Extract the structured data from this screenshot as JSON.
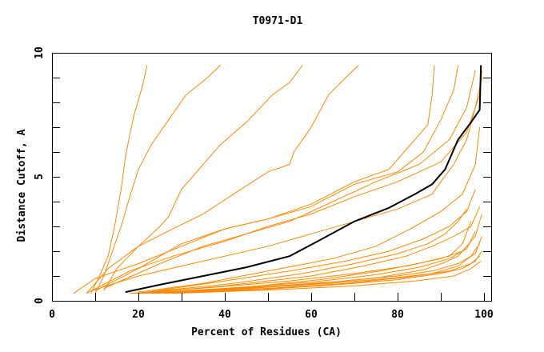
{
  "chart_data": {
    "type": "line",
    "title": "T0971-D1",
    "xlabel": "Percent of Residues (CA)",
    "ylabel": "Distance Cutoff, A",
    "xlim": [
      0,
      100
    ],
    "ylim": [
      0,
      10
    ],
    "x_ticks": [
      0,
      20,
      40,
      60,
      80,
      100
    ],
    "y_ticks": [
      0,
      5,
      10
    ],
    "grid": false,
    "colors": {
      "highlight": "#000000",
      "others": "#ff8800",
      "axis": "#000000"
    },
    "highlight_series": {
      "name": "highlighted",
      "points": [
        [
          17,
          0.35
        ],
        [
          25,
          0.65
        ],
        [
          35,
          1.0
        ],
        [
          45,
          1.35
        ],
        [
          55,
          1.8
        ],
        [
          62,
          2.45
        ],
        [
          70,
          3.2
        ],
        [
          78,
          3.75
        ],
        [
          84,
          4.3
        ],
        [
          88,
          4.7
        ],
        [
          91,
          5.3
        ],
        [
          94,
          6.5
        ],
        [
          97,
          7.2
        ],
        [
          99,
          7.7
        ],
        [
          99.3,
          9.5
        ]
      ]
    },
    "series": [
      {
        "name": "s1",
        "points": [
          [
            9,
            0.3
          ],
          [
            11,
            1.0
          ],
          [
            13,
            1.8
          ],
          [
            14.5,
            3.0
          ],
          [
            16,
            4.5
          ],
          [
            17,
            5.8
          ],
          [
            18,
            6.7
          ],
          [
            19,
            7.5
          ],
          [
            21,
            8.7
          ],
          [
            22,
            9.5
          ]
        ]
      },
      {
        "name": "s2",
        "points": [
          [
            10,
            0.3
          ],
          [
            12,
            1.0
          ],
          [
            14,
            2.0
          ],
          [
            16,
            3.0
          ],
          [
            18,
            4.2
          ],
          [
            20,
            5.3
          ],
          [
            23,
            6.3
          ],
          [
            27,
            7.3
          ],
          [
            31,
            8.3
          ],
          [
            36,
            9.0
          ],
          [
            39,
            9.5
          ]
        ]
      },
      {
        "name": "s3",
        "points": [
          [
            12,
            0.4
          ],
          [
            15,
            1.3
          ],
          [
            20,
            2.2
          ],
          [
            25,
            3.0
          ],
          [
            27,
            3.4
          ],
          [
            30,
            4.5
          ],
          [
            34,
            5.3
          ],
          [
            39,
            6.3
          ],
          [
            45,
            7.2
          ],
          [
            51,
            8.3
          ],
          [
            55,
            8.8
          ],
          [
            58,
            9.5
          ]
        ]
      },
      {
        "name": "s4",
        "points": [
          [
            8,
            0.3
          ],
          [
            13,
            1.3
          ],
          [
            20,
            2.2
          ],
          [
            28,
            2.9
          ],
          [
            35,
            3.5
          ],
          [
            42,
            4.3
          ],
          [
            50,
            5.2
          ],
          [
            55,
            5.5
          ],
          [
            56,
            6.0
          ],
          [
            60,
            7.0
          ],
          [
            64,
            8.3
          ],
          [
            68,
            9.0
          ],
          [
            71,
            9.5
          ]
        ]
      },
      {
        "name": "s5",
        "points": [
          [
            5,
            0.3
          ],
          [
            10,
            0.9
          ],
          [
            20,
            1.5
          ],
          [
            30,
            2.2
          ],
          [
            40,
            2.9
          ],
          [
            50,
            3.3
          ],
          [
            60,
            3.9
          ],
          [
            70,
            4.8
          ],
          [
            78,
            5.3
          ],
          [
            83,
            6.3
          ],
          [
            87,
            7.1
          ],
          [
            88,
            8.3
          ],
          [
            88.5,
            9.5
          ]
        ]
      },
      {
        "name": "s6",
        "points": [
          [
            10,
            0.4
          ],
          [
            20,
            1.3
          ],
          [
            30,
            2.3
          ],
          [
            40,
            2.9
          ],
          [
            50,
            3.3
          ],
          [
            60,
            3.8
          ],
          [
            70,
            4.7
          ],
          [
            80,
            5.2
          ],
          [
            86,
            6.0
          ],
          [
            90,
            7.3
          ],
          [
            93,
            8.5
          ],
          [
            94,
            9.5
          ]
        ]
      },
      {
        "name": "s7",
        "points": [
          [
            12,
            0.5
          ],
          [
            25,
            1.5
          ],
          [
            35,
            2.2
          ],
          [
            45,
            2.7
          ],
          [
            55,
            3.2
          ],
          [
            65,
            4.0
          ],
          [
            75,
            4.8
          ],
          [
            85,
            5.5
          ],
          [
            92,
            6.5
          ],
          [
            96,
            7.8
          ],
          [
            98,
            9.3
          ]
        ]
      },
      {
        "name": "s8",
        "points": [
          [
            8,
            0.3
          ],
          [
            18,
            1.2
          ],
          [
            28,
            1.8
          ],
          [
            40,
            2.4
          ],
          [
            50,
            3.0
          ],
          [
            60,
            3.5
          ],
          [
            70,
            4.2
          ],
          [
            80,
            4.8
          ],
          [
            90,
            5.6
          ],
          [
            96,
            6.8
          ],
          [
            99,
            8.3
          ],
          [
            99.5,
            9.3
          ]
        ]
      },
      {
        "name": "s9",
        "points": [
          [
            9,
            0.4
          ],
          [
            20,
            1.0
          ],
          [
            35,
            1.6
          ],
          [
            50,
            2.2
          ],
          [
            60,
            2.7
          ],
          [
            70,
            3.2
          ],
          [
            80,
            3.7
          ],
          [
            88,
            4.3
          ],
          [
            90,
            4.8
          ],
          [
            93,
            5.5
          ],
          [
            96,
            6.5
          ],
          [
            98,
            7.8
          ],
          [
            99.5,
            9.0
          ]
        ]
      },
      {
        "name": "s10",
        "points": [
          [
            20,
            0.35
          ],
          [
            35,
            0.7
          ],
          [
            50,
            1.2
          ],
          [
            65,
            1.7
          ],
          [
            75,
            2.2
          ],
          [
            83,
            2.9
          ],
          [
            90,
            3.6
          ],
          [
            95,
            4.3
          ],
          [
            98,
            5.5
          ],
          [
            99,
            7.0
          ]
        ]
      },
      {
        "name": "s11",
        "points": [
          [
            22,
            0.35
          ],
          [
            40,
            0.8
          ],
          [
            55,
            1.2
          ],
          [
            68,
            1.6
          ],
          [
            78,
            2.0
          ],
          [
            86,
            2.5
          ],
          [
            92,
            3.0
          ],
          [
            96,
            3.6
          ],
          [
            98,
            4.5
          ]
        ]
      },
      {
        "name": "s12",
        "points": [
          [
            20,
            0.3
          ],
          [
            40,
            0.6
          ],
          [
            60,
            1.0
          ],
          [
            72,
            1.4
          ],
          [
            82,
            1.8
          ],
          [
            88,
            2.2
          ],
          [
            93,
            2.6
          ],
          [
            97,
            3.0
          ],
          [
            99,
            3.8
          ]
        ]
      },
      {
        "name": "s13",
        "points": [
          [
            22,
            0.35
          ],
          [
            42,
            0.7
          ],
          [
            58,
            1.1
          ],
          [
            70,
            1.5
          ],
          [
            80,
            1.9
          ],
          [
            87,
            2.3
          ],
          [
            91,
            2.7
          ],
          [
            94,
            3.2
          ],
          [
            96,
            3.7
          ]
        ]
      },
      {
        "name": "s14",
        "points": [
          [
            18,
            0.3
          ],
          [
            38,
            0.55
          ],
          [
            55,
            0.8
          ],
          [
            70,
            1.1
          ],
          [
            82,
            1.4
          ],
          [
            90,
            1.7
          ],
          [
            95,
            2.0
          ],
          [
            98,
            2.6
          ],
          [
            99.5,
            3.5
          ]
        ]
      },
      {
        "name": "s15",
        "points": [
          [
            20,
            0.3
          ],
          [
            40,
            0.5
          ],
          [
            60,
            0.75
          ],
          [
            75,
            1.05
          ],
          [
            85,
            1.35
          ],
          [
            92,
            1.7
          ],
          [
            96,
            2.1
          ],
          [
            98,
            2.8
          ]
        ]
      },
      {
        "name": "s16",
        "points": [
          [
            24,
            0.3
          ],
          [
            45,
            0.55
          ],
          [
            62,
            0.85
          ],
          [
            76,
            1.2
          ],
          [
            86,
            1.55
          ],
          [
            92,
            1.8
          ],
          [
            95,
            2.3
          ],
          [
            97,
            3.2
          ]
        ]
      },
      {
        "name": "s17",
        "points": [
          [
            19,
            0.3
          ],
          [
            36,
            0.45
          ],
          [
            52,
            0.6
          ],
          [
            68,
            0.8
          ],
          [
            80,
            1.0
          ],
          [
            88,
            1.2
          ],
          [
            94,
            1.5
          ],
          [
            98,
            1.9
          ],
          [
            99.5,
            2.6
          ]
        ]
      },
      {
        "name": "s18",
        "points": [
          [
            21,
            0.3
          ],
          [
            44,
            0.5
          ],
          [
            64,
            0.7
          ],
          [
            78,
            0.9
          ],
          [
            88,
            1.1
          ],
          [
            94,
            1.4
          ],
          [
            97,
            1.8
          ],
          [
            99,
            2.3
          ]
        ]
      },
      {
        "name": "s19",
        "points": [
          [
            26,
            0.3
          ],
          [
            48,
            0.45
          ],
          [
            66,
            0.65
          ],
          [
            80,
            0.85
          ],
          [
            90,
            1.1
          ],
          [
            95,
            1.3
          ],
          [
            98,
            1.6
          ],
          [
            99.5,
            2.0
          ]
        ]
      },
      {
        "name": "s20",
        "points": [
          [
            23,
            0.3
          ],
          [
            46,
            0.5
          ],
          [
            62,
            0.7
          ],
          [
            76,
            0.95
          ],
          [
            86,
            1.25
          ],
          [
            91,
            1.55
          ],
          [
            94,
            1.8
          ],
          [
            96,
            2.2
          ]
        ]
      },
      {
        "name": "s21",
        "points": [
          [
            30,
            0.35
          ],
          [
            50,
            0.5
          ],
          [
            68,
            0.7
          ],
          [
            82,
            0.95
          ],
          [
            92,
            1.2
          ],
          [
            97,
            1.5
          ],
          [
            99,
            1.8
          ]
        ]
      },
      {
        "name": "s22",
        "points": [
          [
            28,
            0.3
          ],
          [
            52,
            0.45
          ],
          [
            70,
            0.6
          ],
          [
            84,
            0.8
          ],
          [
            93,
            1.0
          ],
          [
            97,
            1.3
          ],
          [
            99.3,
            1.6
          ]
        ]
      }
    ]
  }
}
